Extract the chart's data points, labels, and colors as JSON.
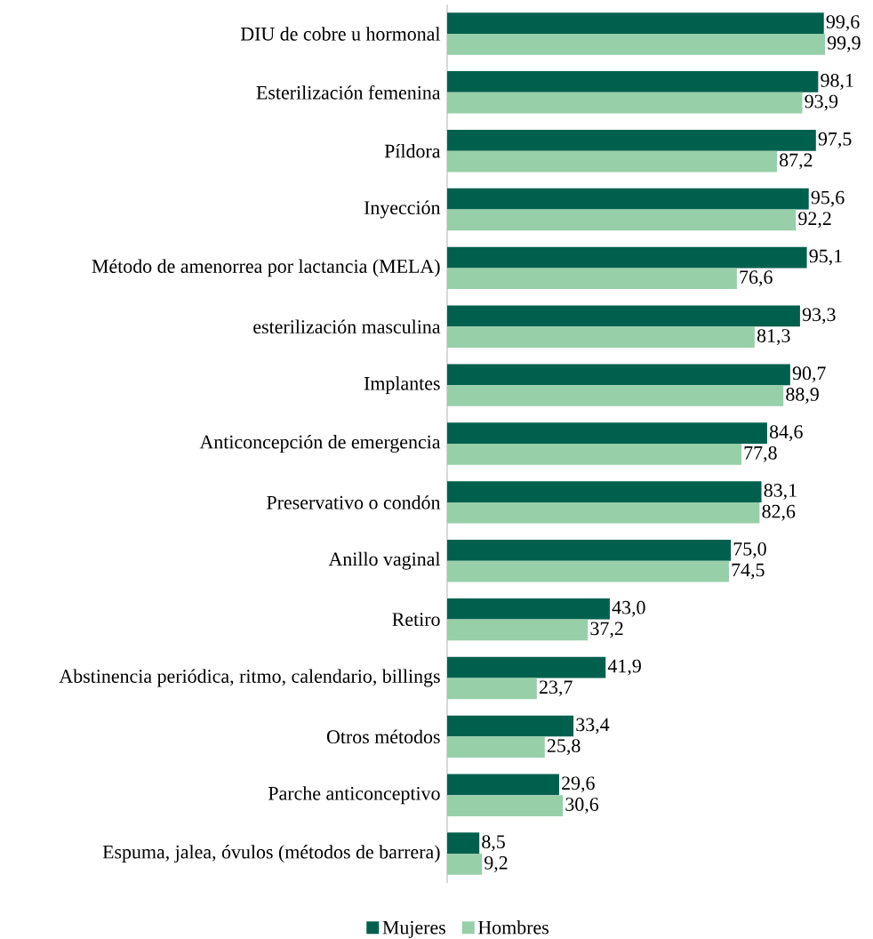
{
  "chart_data": {
    "type": "bar",
    "orientation": "horizontal",
    "legend": "bottom",
    "categories": [
      "DIU de cobre u hormonal",
      "Esterilización femenina",
      "Píldora",
      "Inyección",
      "Método de amenorrea por lactancia (MELA)",
      "esterilización masculina",
      "Implantes",
      "Anticoncepción de emergencia",
      "Preservativo o condón",
      "Anillo vaginal",
      "Retiro",
      "Abstinencia periódica, ritmo, calendario, billings",
      "Otros métodos",
      "Parche anticonceptivo",
      "Espuma, jalea, óvulos (métodos de barrera)"
    ],
    "series": [
      {
        "name": "Mujeres",
        "color": "#00604e",
        "values": [
          99.6,
          98.1,
          97.5,
          95.6,
          95.1,
          93.3,
          90.7,
          84.6,
          83.1,
          75.0,
          43.0,
          41.9,
          33.4,
          29.6,
          8.5
        ],
        "value_labels": [
          "99,6",
          "98,1",
          "97,5",
          "95,6",
          "95,1",
          "93,3",
          "90,7",
          "84,6",
          "83,1",
          "75,0",
          "43,0",
          "41,9",
          "33,4",
          "29,6",
          "8,5"
        ]
      },
      {
        "name": "Hombres",
        "color": "#97cfa8",
        "values": [
          99.9,
          93.9,
          87.2,
          92.2,
          76.6,
          81.3,
          88.9,
          77.8,
          82.6,
          74.5,
          37.2,
          23.7,
          25.8,
          30.6,
          9.2
        ],
        "value_labels": [
          "99,9",
          "93,9",
          "87,2",
          "92,2",
          "76,6",
          "81,3",
          "88,9",
          "77,8",
          "82,6",
          "74,5",
          "37,2",
          "23,7",
          "25,8",
          "30,6",
          "9,2"
        ]
      }
    ]
  }
}
